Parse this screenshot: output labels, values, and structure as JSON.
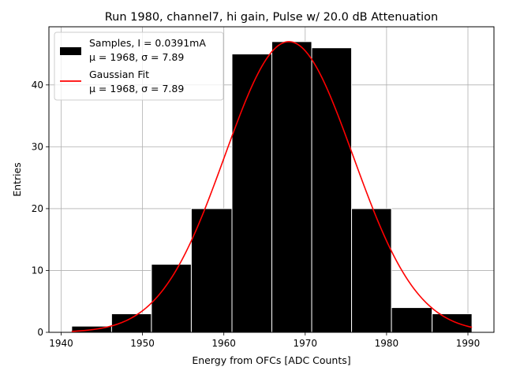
{
  "chart_data": {
    "type": "bar",
    "title": "Run 1980, channel7, hi gain, Pulse w/ 20.0 dB Attenuation",
    "xlabel": "Energy from OFCs [ADC Counts]",
    "ylabel": "Entries",
    "xlim": [
      1938.5,
      1993.2
    ],
    "ylim": [
      0,
      49.4
    ],
    "xticks": [
      1940,
      1950,
      1960,
      1970,
      1980,
      1990
    ],
    "yticks": [
      0,
      10,
      20,
      30,
      40
    ],
    "grid": true,
    "legend_position": "top-left",
    "histogram": {
      "bin_edges": [
        1941.3,
        1946.2,
        1951.1,
        1956.0,
        1961.0,
        1965.9,
        1970.8,
        1975.7,
        1980.6,
        1985.6,
        1990.5
      ],
      "counts": [
        1,
        3,
        11,
        20,
        45,
        47,
        46,
        20,
        4,
        3
      ],
      "fill_color": "#000000",
      "edge_color": "#ffffff"
    },
    "fit": {
      "type": "gaussian",
      "mu": 1968,
      "sigma": 7.89,
      "amplitude": 47,
      "x_range": [
        1941.3,
        1990.5
      ],
      "color": "#ff0000"
    },
    "legend": [
      {
        "label_line1": "Samples, I = 0.0391mA",
        "label_line2": "μ = 1968, σ = 7.89",
        "swatch": "bar",
        "color": "#000000"
      },
      {
        "label_line1": "Gaussian Fit",
        "label_line2": "μ = 1968, σ = 7.89",
        "swatch": "line",
        "color": "#ff0000"
      }
    ]
  }
}
